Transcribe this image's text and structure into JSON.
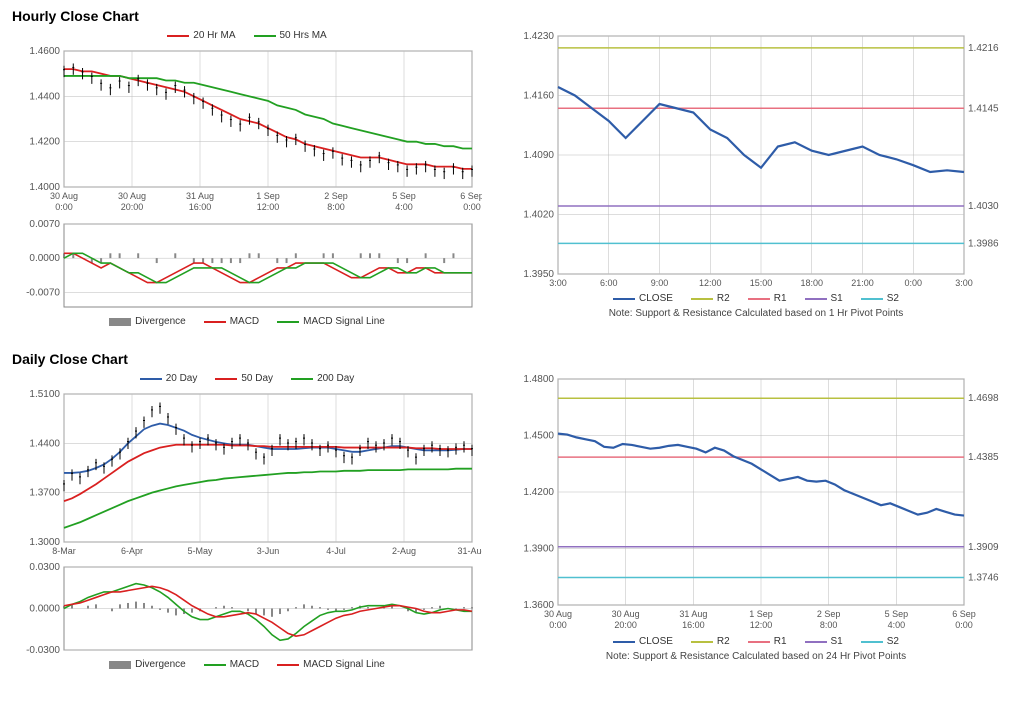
{
  "hourly": {
    "title": "Hourly Close Chart",
    "main": {
      "legend": {
        "ma20": "20 Hr MA",
        "ma50": "50 Hrs MA"
      },
      "colors": {
        "price": "#000000",
        "ma20": "#d92020",
        "ma50": "#22a022",
        "grid": "#bbbbbb",
        "bg": "#ffffff"
      },
      "ylim": [
        1.4,
        1.46
      ],
      "ytick_step": 0.02,
      "yticks": [
        "1.4000",
        "1.4200",
        "1.4400",
        "1.4600"
      ],
      "xticks": [
        "30 Aug\n0:00",
        "30 Aug\n20:00",
        "31 Aug\n16:00",
        "1 Sep\n12:00",
        "2 Sep\n8:00",
        "5 Sep\n4:00",
        "6 Sep\n0:00"
      ],
      "price": [
        1.451,
        1.452,
        1.45,
        1.448,
        1.445,
        1.443,
        1.446,
        1.444,
        1.447,
        1.445,
        1.443,
        1.441,
        1.444,
        1.442,
        1.439,
        1.437,
        1.434,
        1.431,
        1.429,
        1.427,
        1.43,
        1.428,
        1.425,
        1.422,
        1.42,
        1.421,
        1.418,
        1.416,
        1.414,
        1.415,
        1.412,
        1.411,
        1.409,
        1.411,
        1.413,
        1.41,
        1.409,
        1.407,
        1.408,
        1.409,
        1.407,
        1.406,
        1.408,
        1.406,
        1.407
      ],
      "ma20": [
        1.452,
        1.452,
        1.451,
        1.451,
        1.45,
        1.449,
        1.449,
        1.448,
        1.447,
        1.446,
        1.445,
        1.444,
        1.443,
        1.442,
        1.44,
        1.438,
        1.436,
        1.434,
        1.432,
        1.43,
        1.429,
        1.428,
        1.426,
        1.424,
        1.422,
        1.421,
        1.419,
        1.418,
        1.417,
        1.416,
        1.415,
        1.414,
        1.413,
        1.413,
        1.413,
        1.412,
        1.411,
        1.41,
        1.41,
        1.41,
        1.409,
        1.409,
        1.409,
        1.408,
        1.408
      ],
      "ma50": [
        1.449,
        1.449,
        1.449,
        1.449,
        1.449,
        1.449,
        1.449,
        1.448,
        1.448,
        1.448,
        1.448,
        1.447,
        1.447,
        1.446,
        1.446,
        1.445,
        1.444,
        1.443,
        1.442,
        1.441,
        1.44,
        1.439,
        1.438,
        1.436,
        1.435,
        1.434,
        1.432,
        1.431,
        1.43,
        1.428,
        1.427,
        1.426,
        1.425,
        1.424,
        1.423,
        1.422,
        1.421,
        1.42,
        1.42,
        1.419,
        1.419,
        1.418,
        1.418,
        1.417,
        1.417
      ]
    },
    "macd": {
      "legend": {
        "div": "Divergence",
        "macd": "MACD",
        "signal": "MACD Signal Line"
      },
      "colors": {
        "div": "#888888",
        "macd": "#d92020",
        "signal": "#22a022"
      },
      "ylim": [
        -0.01,
        0.007
      ],
      "yticks": [
        "-0.0070",
        "0.0000",
        "0.0070"
      ],
      "div": [
        0.001,
        0.001,
        0.0,
        -0.001,
        -0.001,
        0.001,
        0.001,
        0.0,
        0.001,
        0.0,
        -0.001,
        0.0,
        0.001,
        0.0,
        -0.001,
        -0.001,
        -0.001,
        -0.001,
        -0.001,
        -0.001,
        0.001,
        0.001,
        0.0,
        -0.001,
        -0.001,
        0.001,
        0.0,
        0.0,
        0.001,
        0.001,
        0.0,
        0.0,
        0.001,
        0.001,
        0.001,
        0.0,
        -0.001,
        -0.001,
        0.0,
        0.001,
        0.0,
        -0.001,
        0.001,
        0.0,
        0.0
      ],
      "macd_line": [
        0.001,
        0.001,
        0.0,
        -0.001,
        -0.002,
        -0.001,
        -0.002,
        -0.003,
        -0.004,
        -0.005,
        -0.005,
        -0.004,
        -0.003,
        -0.002,
        -0.001,
        -0.001,
        -0.002,
        -0.003,
        -0.004,
        -0.005,
        -0.005,
        -0.004,
        -0.003,
        -0.002,
        -0.002,
        -0.001,
        -0.001,
        -0.001,
        -0.001,
        -0.002,
        -0.003,
        -0.004,
        -0.004,
        -0.003,
        -0.002,
        -0.002,
        -0.003,
        -0.003,
        -0.002,
        -0.002,
        -0.003,
        -0.003,
        -0.003,
        -0.003,
        -0.003
      ],
      "signal_line": [
        0.0,
        0.001,
        0.001,
        0.0,
        -0.001,
        -0.001,
        -0.002,
        -0.003,
        -0.003,
        -0.004,
        -0.005,
        -0.005,
        -0.004,
        -0.003,
        -0.002,
        -0.002,
        -0.002,
        -0.002,
        -0.003,
        -0.004,
        -0.005,
        -0.005,
        -0.004,
        -0.003,
        -0.002,
        -0.002,
        -0.001,
        -0.001,
        -0.001,
        -0.001,
        -0.002,
        -0.003,
        -0.004,
        -0.004,
        -0.003,
        -0.002,
        -0.002,
        -0.003,
        -0.003,
        -0.002,
        -0.002,
        -0.003,
        -0.003,
        -0.003,
        -0.003
      ]
    },
    "sr": {
      "legend": {
        "close": "CLOSE",
        "r2": "R2",
        "r1": "R1",
        "s1": "S1",
        "s2": "S2"
      },
      "colors": {
        "close": "#2e5ca8",
        "r2": "#b8c040",
        "r1": "#e87080",
        "s1": "#9070c0",
        "s2": "#50c0d0",
        "grid": "#bbb"
      },
      "ylim": [
        1.395,
        1.423
      ],
      "yticks": [
        "1.3950",
        "1.4020",
        "1.4090",
        "1.4160",
        "1.4230"
      ],
      "xticks": [
        "3:00",
        "6:00",
        "9:00",
        "12:00",
        "15:00",
        "18:00",
        "21:00",
        "0:00",
        "3:00"
      ],
      "levels": {
        "r2": 1.4216,
        "r1": 1.4145,
        "s1": 1.403,
        "s2": 1.3986
      },
      "level_labels": {
        "r2": "1.4216",
        "r1": "1.4145",
        "s1": "1.4030",
        "s2": "1.3986"
      },
      "close": [
        1.417,
        1.416,
        1.4145,
        1.413,
        1.411,
        1.413,
        1.415,
        1.4145,
        1.414,
        1.412,
        1.411,
        1.409,
        1.4075,
        1.41,
        1.4105,
        1.4095,
        1.409,
        1.4095,
        1.41,
        1.409,
        1.4085,
        1.4078,
        1.407,
        1.4072,
        1.407
      ],
      "note": "Note: Support & Resistance Calculated based on 1 Hr Pivot Points"
    }
  },
  "daily": {
    "title": "Daily Close Chart",
    "main": {
      "legend": {
        "d20": "20 Day",
        "d50": "50 Day",
        "d200": "200 Day"
      },
      "colors": {
        "price": "#000000",
        "d20": "#2e5ca8",
        "d50": "#d92020",
        "d200": "#22a022",
        "grid": "#bbb"
      },
      "ylim": [
        1.3,
        1.51
      ],
      "yticks": [
        "1.3000",
        "1.3700",
        "1.4400",
        "1.5100"
      ],
      "xticks": [
        "8-Mar",
        "6-Apr",
        "5-May",
        "3-Jun",
        "4-Jul",
        "2-Aug",
        "31-Aug"
      ],
      "price": [
        1.38,
        1.395,
        1.39,
        1.4,
        1.41,
        1.405,
        1.415,
        1.425,
        1.44,
        1.455,
        1.47,
        1.485,
        1.49,
        1.475,
        1.46,
        1.445,
        1.435,
        1.44,
        1.445,
        1.438,
        1.432,
        1.44,
        1.445,
        1.438,
        1.425,
        1.418,
        1.43,
        1.445,
        1.438,
        1.44,
        1.445,
        1.438,
        1.43,
        1.435,
        1.428,
        1.42,
        1.418,
        1.43,
        1.44,
        1.435,
        1.438,
        1.445,
        1.44,
        1.428,
        1.418,
        1.43,
        1.435,
        1.43,
        1.428,
        1.432,
        1.435,
        1.43
      ],
      "d20": [
        1.398,
        1.398,
        1.399,
        1.401,
        1.405,
        1.41,
        1.418,
        1.428,
        1.44,
        1.45,
        1.46,
        1.465,
        1.468,
        1.466,
        1.462,
        1.458,
        1.452,
        1.448,
        1.445,
        1.442,
        1.44,
        1.438,
        1.438,
        1.438,
        1.436,
        1.434,
        1.432,
        1.432,
        1.432,
        1.432,
        1.433,
        1.434,
        1.434,
        1.434,
        1.432,
        1.43,
        1.428,
        1.428,
        1.43,
        1.432,
        1.434,
        1.436,
        1.436,
        1.434,
        1.432,
        1.43,
        1.43,
        1.43,
        1.43,
        1.431,
        1.432,
        1.432
      ],
      "d50": [
        1.358,
        1.362,
        1.368,
        1.375,
        1.382,
        1.39,
        1.398,
        1.406,
        1.414,
        1.42,
        1.426,
        1.43,
        1.434,
        1.436,
        1.438,
        1.438,
        1.438,
        1.438,
        1.438,
        1.438,
        1.438,
        1.437,
        1.437,
        1.437,
        1.436,
        1.436,
        1.435,
        1.435,
        1.435,
        1.435,
        1.435,
        1.435,
        1.435,
        1.435,
        1.435,
        1.434,
        1.434,
        1.434,
        1.434,
        1.434,
        1.434,
        1.434,
        1.434,
        1.434,
        1.433,
        1.433,
        1.433,
        1.432,
        1.432,
        1.432,
        1.432,
        1.432
      ],
      "d200": [
        1.32,
        1.324,
        1.328,
        1.333,
        1.338,
        1.343,
        1.348,
        1.353,
        1.358,
        1.362,
        1.366,
        1.37,
        1.373,
        1.376,
        1.379,
        1.381,
        1.383,
        1.385,
        1.387,
        1.388,
        1.39,
        1.391,
        1.392,
        1.393,
        1.394,
        1.395,
        1.396,
        1.397,
        1.398,
        1.398,
        1.399,
        1.399,
        1.4,
        1.4,
        1.4,
        1.401,
        1.401,
        1.401,
        1.402,
        1.402,
        1.402,
        1.402,
        1.402,
        1.403,
        1.403,
        1.403,
        1.403,
        1.403,
        1.403,
        1.404,
        1.404,
        1.404
      ]
    },
    "macd": {
      "legend": {
        "div": "Divergence",
        "macd": "MACD",
        "signal": "MACD Signal Line"
      },
      "colors": {
        "div": "#888888",
        "macd": "#22a022",
        "signal": "#d92020"
      },
      "ylim": [
        -0.03,
        0.03
      ],
      "yticks": [
        "-0.0300",
        "0.0000",
        "0.0300"
      ],
      "div": [
        0.002,
        0.003,
        0.0,
        0.002,
        0.003,
        0.0,
        -0.002,
        0.003,
        0.004,
        0.005,
        0.004,
        0.002,
        -0.001,
        -0.003,
        -0.005,
        -0.004,
        -0.003,
        -0.002,
        0.0,
        0.001,
        0.002,
        0.001,
        0.0,
        -0.002,
        -0.004,
        -0.005,
        -0.006,
        -0.004,
        -0.002,
        0.001,
        0.003,
        0.002,
        0.001,
        -0.001,
        -0.002,
        -0.001,
        0.001,
        0.002,
        0.001,
        0.0,
        0.001,
        0.002,
        0.0,
        -0.002,
        -0.003,
        -0.001,
        0.001,
        0.002,
        0.0,
        -0.001,
        0.001,
        0.001
      ],
      "macd_line": [
        0.0,
        0.003,
        0.005,
        0.008,
        0.01,
        0.012,
        0.012,
        0.014,
        0.016,
        0.018,
        0.017,
        0.015,
        0.012,
        0.008,
        0.003,
        -0.002,
        -0.006,
        -0.008,
        -0.008,
        -0.006,
        -0.004,
        -0.002,
        -0.002,
        -0.004,
        -0.008,
        -0.013,
        -0.019,
        -0.023,
        -0.022,
        -0.018,
        -0.013,
        -0.009,
        -0.005,
        -0.003,
        -0.002,
        -0.002,
        -0.001,
        0.001,
        0.002,
        0.002,
        0.002,
        0.003,
        0.002,
        0.0,
        -0.003,
        -0.004,
        -0.003,
        -0.001,
        0.0,
        -0.001,
        -0.002,
        -0.002
      ],
      "signal_line": [
        0.002,
        0.003,
        0.004,
        0.006,
        0.008,
        0.01,
        0.012,
        0.012,
        0.013,
        0.014,
        0.015,
        0.016,
        0.015,
        0.013,
        0.01,
        0.006,
        0.002,
        -0.001,
        -0.004,
        -0.006,
        -0.006,
        -0.005,
        -0.004,
        -0.003,
        -0.004,
        -0.007,
        -0.01,
        -0.014,
        -0.018,
        -0.02,
        -0.019,
        -0.016,
        -0.013,
        -0.01,
        -0.007,
        -0.005,
        -0.004,
        -0.002,
        -0.001,
        0.0,
        0.001,
        0.002,
        0.002,
        0.001,
        0.0,
        -0.002,
        -0.003,
        -0.003,
        -0.002,
        -0.001,
        -0.001,
        -0.002
      ]
    },
    "sr": {
      "legend": {
        "close": "CLOSE",
        "r2": "R2",
        "r1": "R1",
        "s1": "S1",
        "s2": "S2"
      },
      "colors": {
        "close": "#2e5ca8",
        "r2": "#b8c040",
        "r1": "#e87080",
        "s1": "#9070c0",
        "s2": "#50c0d0"
      },
      "ylim": [
        1.36,
        1.48
      ],
      "yticks": [
        "1.3600",
        "1.3900",
        "1.4200",
        "1.4500",
        "1.4800"
      ],
      "xticks": [
        "30 Aug\n0:00",
        "30 Aug\n20:00",
        "31 Aug\n16:00",
        "1 Sep\n12:00",
        "2 Sep\n8:00",
        "5 Sep\n4:00",
        "6 Sep\n0:00"
      ],
      "levels": {
        "r2": 1.4698,
        "r1": 1.4385,
        "s1": 1.3909,
        "s2": 1.3746
      },
      "level_labels": {
        "r2": "1.4698",
        "r1": "1.4385",
        "s1": "1.3909",
        "s2": "1.3746"
      },
      "close": [
        1.451,
        1.4505,
        1.449,
        1.448,
        1.447,
        1.444,
        1.4435,
        1.4455,
        1.445,
        1.444,
        1.443,
        1.4435,
        1.4445,
        1.445,
        1.444,
        1.443,
        1.441,
        1.4435,
        1.442,
        1.439,
        1.437,
        1.435,
        1.432,
        1.429,
        1.426,
        1.427,
        1.428,
        1.426,
        1.4255,
        1.426,
        1.424,
        1.421,
        1.419,
        1.417,
        1.415,
        1.413,
        1.414,
        1.412,
        1.41,
        1.408,
        1.409,
        1.411,
        1.4095,
        1.408,
        1.4075
      ],
      "note": "Note: Support & Resistance Calculated based on 24 Hr Pivot Points"
    }
  }
}
